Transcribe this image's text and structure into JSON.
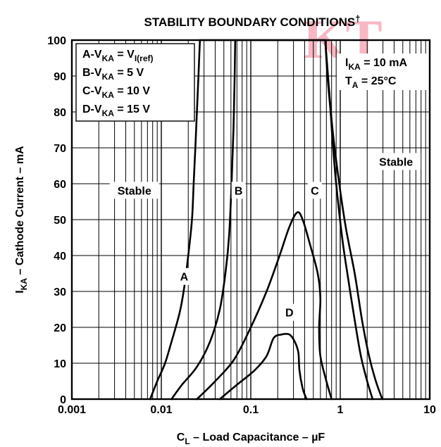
{
  "watermark": "KT",
  "chart_data": {
    "type": "line",
    "title": "STABILITY BOUNDARY CONDITIONS",
    "title_mark": "†",
    "xlabel": {
      "main": "C",
      "sub": "L",
      "rest": " – Load Capacitance – µF"
    },
    "ylabel": {
      "main": "I",
      "sub": "KA",
      "rest": "  – Cathode Current – mA"
    },
    "x_scale": "log",
    "xlim": [
      0.001,
      10
    ],
    "ylim": [
      0,
      100
    ],
    "x_ticks": [
      {
        "value": 0.001,
        "label": "0.001"
      },
      {
        "value": 0.01,
        "label": "0.01"
      },
      {
        "value": 0.1,
        "label": "0.1"
      },
      {
        "value": 1,
        "label": "1"
      },
      {
        "value": 10,
        "label": "10"
      }
    ],
    "y_ticks": [
      {
        "value": 0,
        "label": "0"
      },
      {
        "value": 10,
        "label": "10"
      },
      {
        "value": 20,
        "label": "20"
      },
      {
        "value": 30,
        "label": "30"
      },
      {
        "value": 40,
        "label": "40"
      },
      {
        "value": 50,
        "label": "50"
      },
      {
        "value": 60,
        "label": "60"
      },
      {
        "value": 70,
        "label": "70"
      },
      {
        "value": 80,
        "label": "80"
      },
      {
        "value": 90,
        "label": "90"
      },
      {
        "value": 100,
        "label": "100"
      }
    ],
    "grid": true,
    "legend": {
      "position": "top-left",
      "entries": [
        {
          "id": "A",
          "parts": [
            [
              "A-V",
              ""
            ],
            [
              "KA",
              "sub"
            ],
            [
              " = V",
              ""
            ],
            [
              "I(ref)",
              "sub"
            ]
          ]
        },
        {
          "id": "B",
          "parts": [
            [
              "B-V",
              ""
            ],
            [
              "KA",
              "sub"
            ],
            [
              " = 5 V",
              ""
            ]
          ]
        },
        {
          "id": "C",
          "parts": [
            [
              "C-V",
              ""
            ],
            [
              "KA",
              "sub"
            ],
            [
              " = 10 V",
              ""
            ]
          ]
        },
        {
          "id": "D",
          "parts": [
            [
              "D-V",
              ""
            ],
            [
              "KA",
              "sub"
            ],
            [
              " = 15 V",
              ""
            ]
          ]
        }
      ]
    },
    "conditions": [
      {
        "parts": [
          [
            "I",
            ""
          ],
          [
            "KA",
            "sub"
          ],
          [
            " = 10 mA",
            ""
          ]
        ]
      },
      {
        "parts": [
          [
            "T",
            ""
          ],
          [
            "A",
            "sub"
          ],
          [
            " = 25°C",
            ""
          ]
        ]
      }
    ],
    "annotations": [
      {
        "text": "Stable",
        "x": 0.005,
        "y": 57
      },
      {
        "text": "Stable",
        "x": 4.2,
        "y": 65
      },
      {
        "text": "A",
        "x": 0.018,
        "y": 33
      },
      {
        "text": "B",
        "x": 0.073,
        "y": 57
      },
      {
        "text": "C",
        "x": 0.52,
        "y": 57
      },
      {
        "text": "D",
        "x": 0.27,
        "y": 23
      }
    ],
    "series": [
      {
        "id": "A",
        "segments": [
          [
            [
              0.0075,
              0
            ],
            [
              0.009,
              5
            ],
            [
              0.011,
              10
            ],
            [
              0.013,
              16
            ],
            [
              0.016,
              24
            ],
            [
              0.018,
              31
            ],
            [
              0.02,
              40
            ],
            [
              0.022,
              50
            ],
            [
              0.023,
              60
            ],
            [
              0.024,
              70
            ],
            [
              0.025,
              80
            ],
            [
              0.026,
              90
            ],
            [
              0.027,
              100
            ]
          ]
        ]
      },
      {
        "id": "B",
        "segments": [
          [
            [
              0.013,
              0
            ],
            [
              0.017,
              4
            ],
            [
              0.025,
              9
            ],
            [
              0.035,
              16
            ],
            [
              0.045,
              25
            ],
            [
              0.052,
              35
            ],
            [
              0.057,
              45
            ],
            [
              0.061,
              60
            ],
            [
              0.064,
              75
            ],
            [
              0.066,
              90
            ],
            [
              0.067,
              100
            ]
          ],
          [
            [
              0.68,
              100
            ],
            [
              0.72,
              90
            ],
            [
              0.78,
              80
            ],
            [
              0.82,
              72
            ],
            [
              0.9,
              60
            ],
            [
              1.05,
              45
            ],
            [
              1.2,
              35
            ],
            [
              1.45,
              22
            ],
            [
              1.7,
              12
            ],
            [
              2.0,
              5
            ],
            [
              2.3,
              0
            ]
          ]
        ]
      },
      {
        "id": "C",
        "segments": [
          [
            [
              0.025,
              0
            ],
            [
              0.04,
              5
            ],
            [
              0.065,
              11
            ],
            [
              0.1,
              20
            ],
            [
              0.15,
              30
            ],
            [
              0.21,
              40
            ],
            [
              0.27,
              48
            ],
            [
              0.33,
              52
            ],
            [
              0.38,
              50
            ],
            [
              0.46,
              43
            ],
            [
              0.56,
              35
            ],
            [
              0.6,
              28
            ],
            [
              0.58,
              20
            ],
            [
              0.6,
              12
            ],
            [
              0.7,
              5
            ],
            [
              0.8,
              0
            ]
          ]
        ]
      },
      {
        "id": "D",
        "segments": [
          [
            [
              0.045,
              0
            ],
            [
              0.07,
              4
            ],
            [
              0.11,
              8
            ],
            [
              0.15,
              12
            ],
            [
              0.18,
              17
            ],
            [
              0.22,
              18
            ],
            [
              0.27,
              18
            ],
            [
              0.31,
              16
            ],
            [
              0.34,
              13
            ],
            [
              0.35,
              8
            ],
            [
              0.38,
              3
            ],
            [
              0.42,
              0
            ]
          ]
        ]
      },
      {
        "id": "upper-bound",
        "segments": [
          [
            [
              0.027,
              100
            ],
            [
              0.68,
              100
            ]
          ],
          [
            [
              0.68,
              100
            ],
            [
              0.74,
              88
            ],
            [
              0.82,
              75
            ],
            [
              0.95,
              62
            ],
            [
              1.15,
              48
            ],
            [
              1.45,
              35
            ],
            [
              1.75,
              22
            ],
            [
              2.1,
              12
            ],
            [
              2.5,
              5
            ],
            [
              2.95,
              0
            ]
          ]
        ]
      }
    ]
  }
}
